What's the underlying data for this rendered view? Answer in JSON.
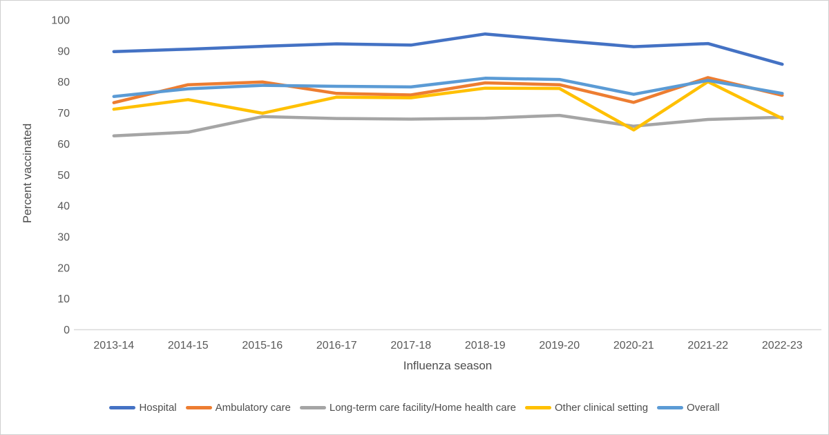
{
  "figure": {
    "background": "#ffffff",
    "border_color": "#cfcfcf",
    "axis_line_color": "#d9d9d9",
    "text_color": "#595959"
  },
  "chart_data": {
    "type": "line",
    "title": "",
    "xlabel": "Influenza season",
    "ylabel": "Percent vaccinated",
    "ylim": [
      0,
      100
    ],
    "y_tick_step": 10,
    "grid": false,
    "legend_position": "bottom",
    "categories": [
      "2013-14",
      "2014-15",
      "2015-16",
      "2016-17",
      "2017-18",
      "2018-19",
      "2019-20",
      "2020-21",
      "2021-22",
      "2022-23"
    ],
    "series": [
      {
        "name": "Hospital",
        "color": "#4472C4",
        "values": [
          89.8,
          90.6,
          91.5,
          92.3,
          91.9,
          95.5,
          93.4,
          91.4,
          92.4,
          85.7
        ]
      },
      {
        "name": "Ambulatory care",
        "color": "#ED7D31",
        "values": [
          73.3,
          79.1,
          80.0,
          76.3,
          75.8,
          79.7,
          79.1,
          73.4,
          81.4,
          75.7
        ]
      },
      {
        "name": "Long-term care facility/Home health care",
        "color": "#A5A5A5",
        "values": [
          62.6,
          63.8,
          68.8,
          68.2,
          68.0,
          68.3,
          69.2,
          65.7,
          67.9,
          68.6
        ]
      },
      {
        "name": "Other clinical setting",
        "color": "#FFC000",
        "values": [
          71.2,
          74.3,
          69.9,
          75.1,
          74.9,
          78.0,
          77.9,
          64.5,
          80.1,
          68.2
        ]
      },
      {
        "name": "Overall",
        "color": "#5B9BD5",
        "values": [
          75.3,
          77.8,
          78.9,
          78.6,
          78.4,
          81.2,
          80.8,
          76.0,
          80.5,
          76.3
        ]
      }
    ]
  }
}
